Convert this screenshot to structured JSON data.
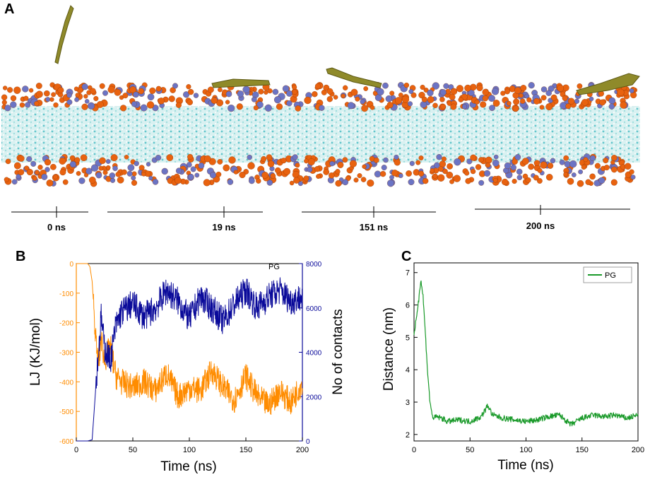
{
  "panel_labels": {
    "a": "A",
    "b": "B",
    "c": "C"
  },
  "membrane": {
    "snapshot_labels": [
      "0 ns",
      "19 ns",
      "151 ns",
      "200 ns"
    ],
    "colors": {
      "headgroup_orange": "#e8620f",
      "headgroup_blue": "#6b74c4",
      "tail_cyan": "#7ccfd4",
      "peptide_olive": "#8f8a2a"
    }
  },
  "chart_data": [
    {
      "type": "line",
      "panel": "B",
      "xlabel": "Time (ns)",
      "ylabel_left": "LJ (KJ/mol)",
      "ylabel_right": "No of contacts",
      "legend": "PG",
      "xlim": [
        0,
        200
      ],
      "ylim_left": [
        -600,
        0
      ],
      "ylim_right": [
        0,
        8000
      ],
      "x_ticks": [
        0,
        50,
        100,
        150,
        200
      ],
      "y_ticks_left": [
        0,
        -100,
        -200,
        -300,
        -400,
        -500,
        -600
      ],
      "y_ticks_right": [
        8000,
        6000,
        4000,
        2000,
        0
      ],
      "series": [
        {
          "name": "LJ",
          "axis": "left",
          "color": "#ff8c00",
          "x": [
            0,
            10,
            12,
            14,
            16,
            18,
            20,
            22,
            25,
            30,
            35,
            40,
            50,
            60,
            70,
            80,
            90,
            100,
            110,
            120,
            130,
            140,
            150,
            160,
            170,
            180,
            190,
            200
          ],
          "y": [
            0,
            0,
            -10,
            -60,
            -180,
            -300,
            -340,
            -250,
            -330,
            -280,
            -380,
            -400,
            -420,
            -400,
            -430,
            -370,
            -450,
            -420,
            -430,
            -360,
            -420,
            -460,
            -380,
            -450,
            -480,
            -430,
            -470,
            -400
          ]
        },
        {
          "name": "No of contacts",
          "axis": "right",
          "color": "#0a0a9a",
          "x": [
            0,
            10,
            14,
            16,
            18,
            20,
            22,
            25,
            30,
            35,
            40,
            50,
            60,
            70,
            80,
            90,
            100,
            110,
            120,
            130,
            140,
            150,
            160,
            170,
            180,
            190,
            200
          ],
          "y": [
            0,
            0,
            50,
            1500,
            3000,
            4200,
            5600,
            4200,
            3600,
            5200,
            5800,
            6200,
            5600,
            6000,
            6800,
            6300,
            5500,
            6500,
            6000,
            5400,
            6200,
            6800,
            6000,
            6500,
            6800,
            6300,
            6500
          ]
        }
      ]
    },
    {
      "type": "line",
      "panel": "C",
      "xlabel": "Time (ns)",
      "ylabel": "Distance (nm)",
      "legend": "PG",
      "xlim": [
        0,
        200
      ],
      "ylim": [
        1.8,
        7.3
      ],
      "x_ticks": [
        0,
        50,
        100,
        150,
        200
      ],
      "y_ticks": [
        2,
        3,
        4,
        5,
        6,
        7
      ],
      "series": [
        {
          "name": "PG",
          "color": "#1a9a2a",
          "x": [
            0,
            2,
            4,
            6,
            8,
            10,
            12,
            14,
            16,
            18,
            20,
            25,
            30,
            40,
            50,
            60,
            66,
            70,
            80,
            90,
            100,
            110,
            120,
            130,
            140,
            150,
            160,
            170,
            180,
            190,
            200
          ],
          "y": [
            5.0,
            5.6,
            6.1,
            6.8,
            6.3,
            5.2,
            4.0,
            3.1,
            2.6,
            2.5,
            2.55,
            2.5,
            2.4,
            2.45,
            2.4,
            2.55,
            2.9,
            2.6,
            2.5,
            2.45,
            2.4,
            2.45,
            2.55,
            2.6,
            2.3,
            2.5,
            2.6,
            2.55,
            2.6,
            2.5,
            2.6
          ]
        }
      ]
    }
  ]
}
